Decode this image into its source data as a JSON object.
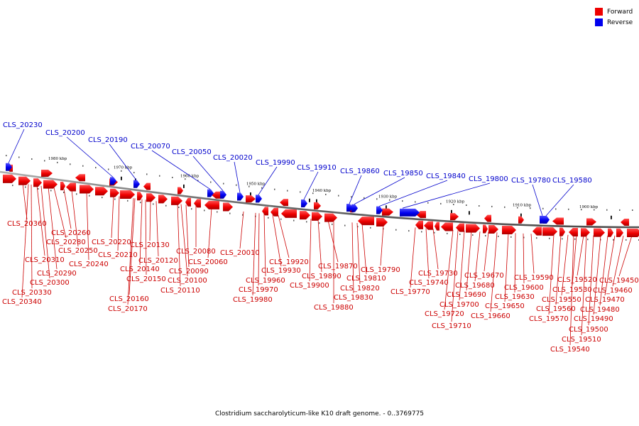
{
  "legend": {
    "forward_label": "Forward",
    "reverse_label": "Reverse",
    "forward_color": "#ee0000",
    "reverse_color": "#0000ee"
  },
  "caption": "Clostridium saccharolyticum-like K10 draft genome. - 0..3769775",
  "colors": {
    "forward": "#ee0000",
    "reverse": "#0000ee",
    "forward_line": "#cc0000",
    "reverse_line": "#0000cc",
    "backbone": "#808080"
  },
  "kbp_labels": [
    "1980 kbp",
    "1970 kbp",
    "1960 kbp",
    "1950 kbp",
    "1940 kbp",
    "1930 kbp",
    "1920 kbp",
    "1910 kbp",
    "1900 kbp"
  ],
  "reverse_genes": [
    "CLS_20230",
    "CLS_20200",
    "CLS_20190",
    "CLS_20070",
    "CLS_20050",
    "CLS_20020",
    "CLS_19990",
    "CLS_19910",
    "CLS_19860",
    "CLS_19850",
    "CLS_19840",
    "CLS_19800",
    "CLS_19780",
    "CLS_19580"
  ],
  "forward_genes": [
    "CLS_20360",
    "CLS_20260",
    "CLS_20280",
    "CLS_20310",
    "CLS_20250",
    "CLS_20240",
    "CLS_20290",
    "CLS_20300",
    "CLS_20330",
    "CLS_20340",
    "CLS_20220",
    "CLS_20210",
    "CLS_20130",
    "CLS_20120",
    "CLS_20140",
    "CLS_20150",
    "CLS_20160",
    "CLS_20170",
    "CLS_20080",
    "CLS_20090",
    "CLS_20060",
    "CLS_20100",
    "CLS_20110",
    "CLS_20010",
    "CLS_19920",
    "CLS_19930",
    "CLS_19960",
    "CLS_19970",
    "CLS_19980",
    "CLS_19870",
    "CLS_19890",
    "CLS_19900",
    "CLS_19810",
    "CLS_19820",
    "CLS_19830",
    "CLS_19880",
    "CLS_19790",
    "CLS_19770",
    "CLS_19730",
    "CLS_19740",
    "CLS_19670",
    "CLS_19680",
    "CLS_19690",
    "CLS_19700",
    "CLS_19720",
    "CLS_19710",
    "CLS_19590",
    "CLS_19600",
    "CLS_19630",
    "CLS_19650",
    "CLS_19660",
    "CLS_19520",
    "CLS_19530",
    "CLS_19550",
    "CLS_19560",
    "CLS_19570",
    "CLS_19450",
    "CLS_19460",
    "CLS_19470",
    "CLS_19480",
    "CLS_19490",
    "CLS_19500",
    "CLS_19510",
    "CLS_19540"
  ]
}
